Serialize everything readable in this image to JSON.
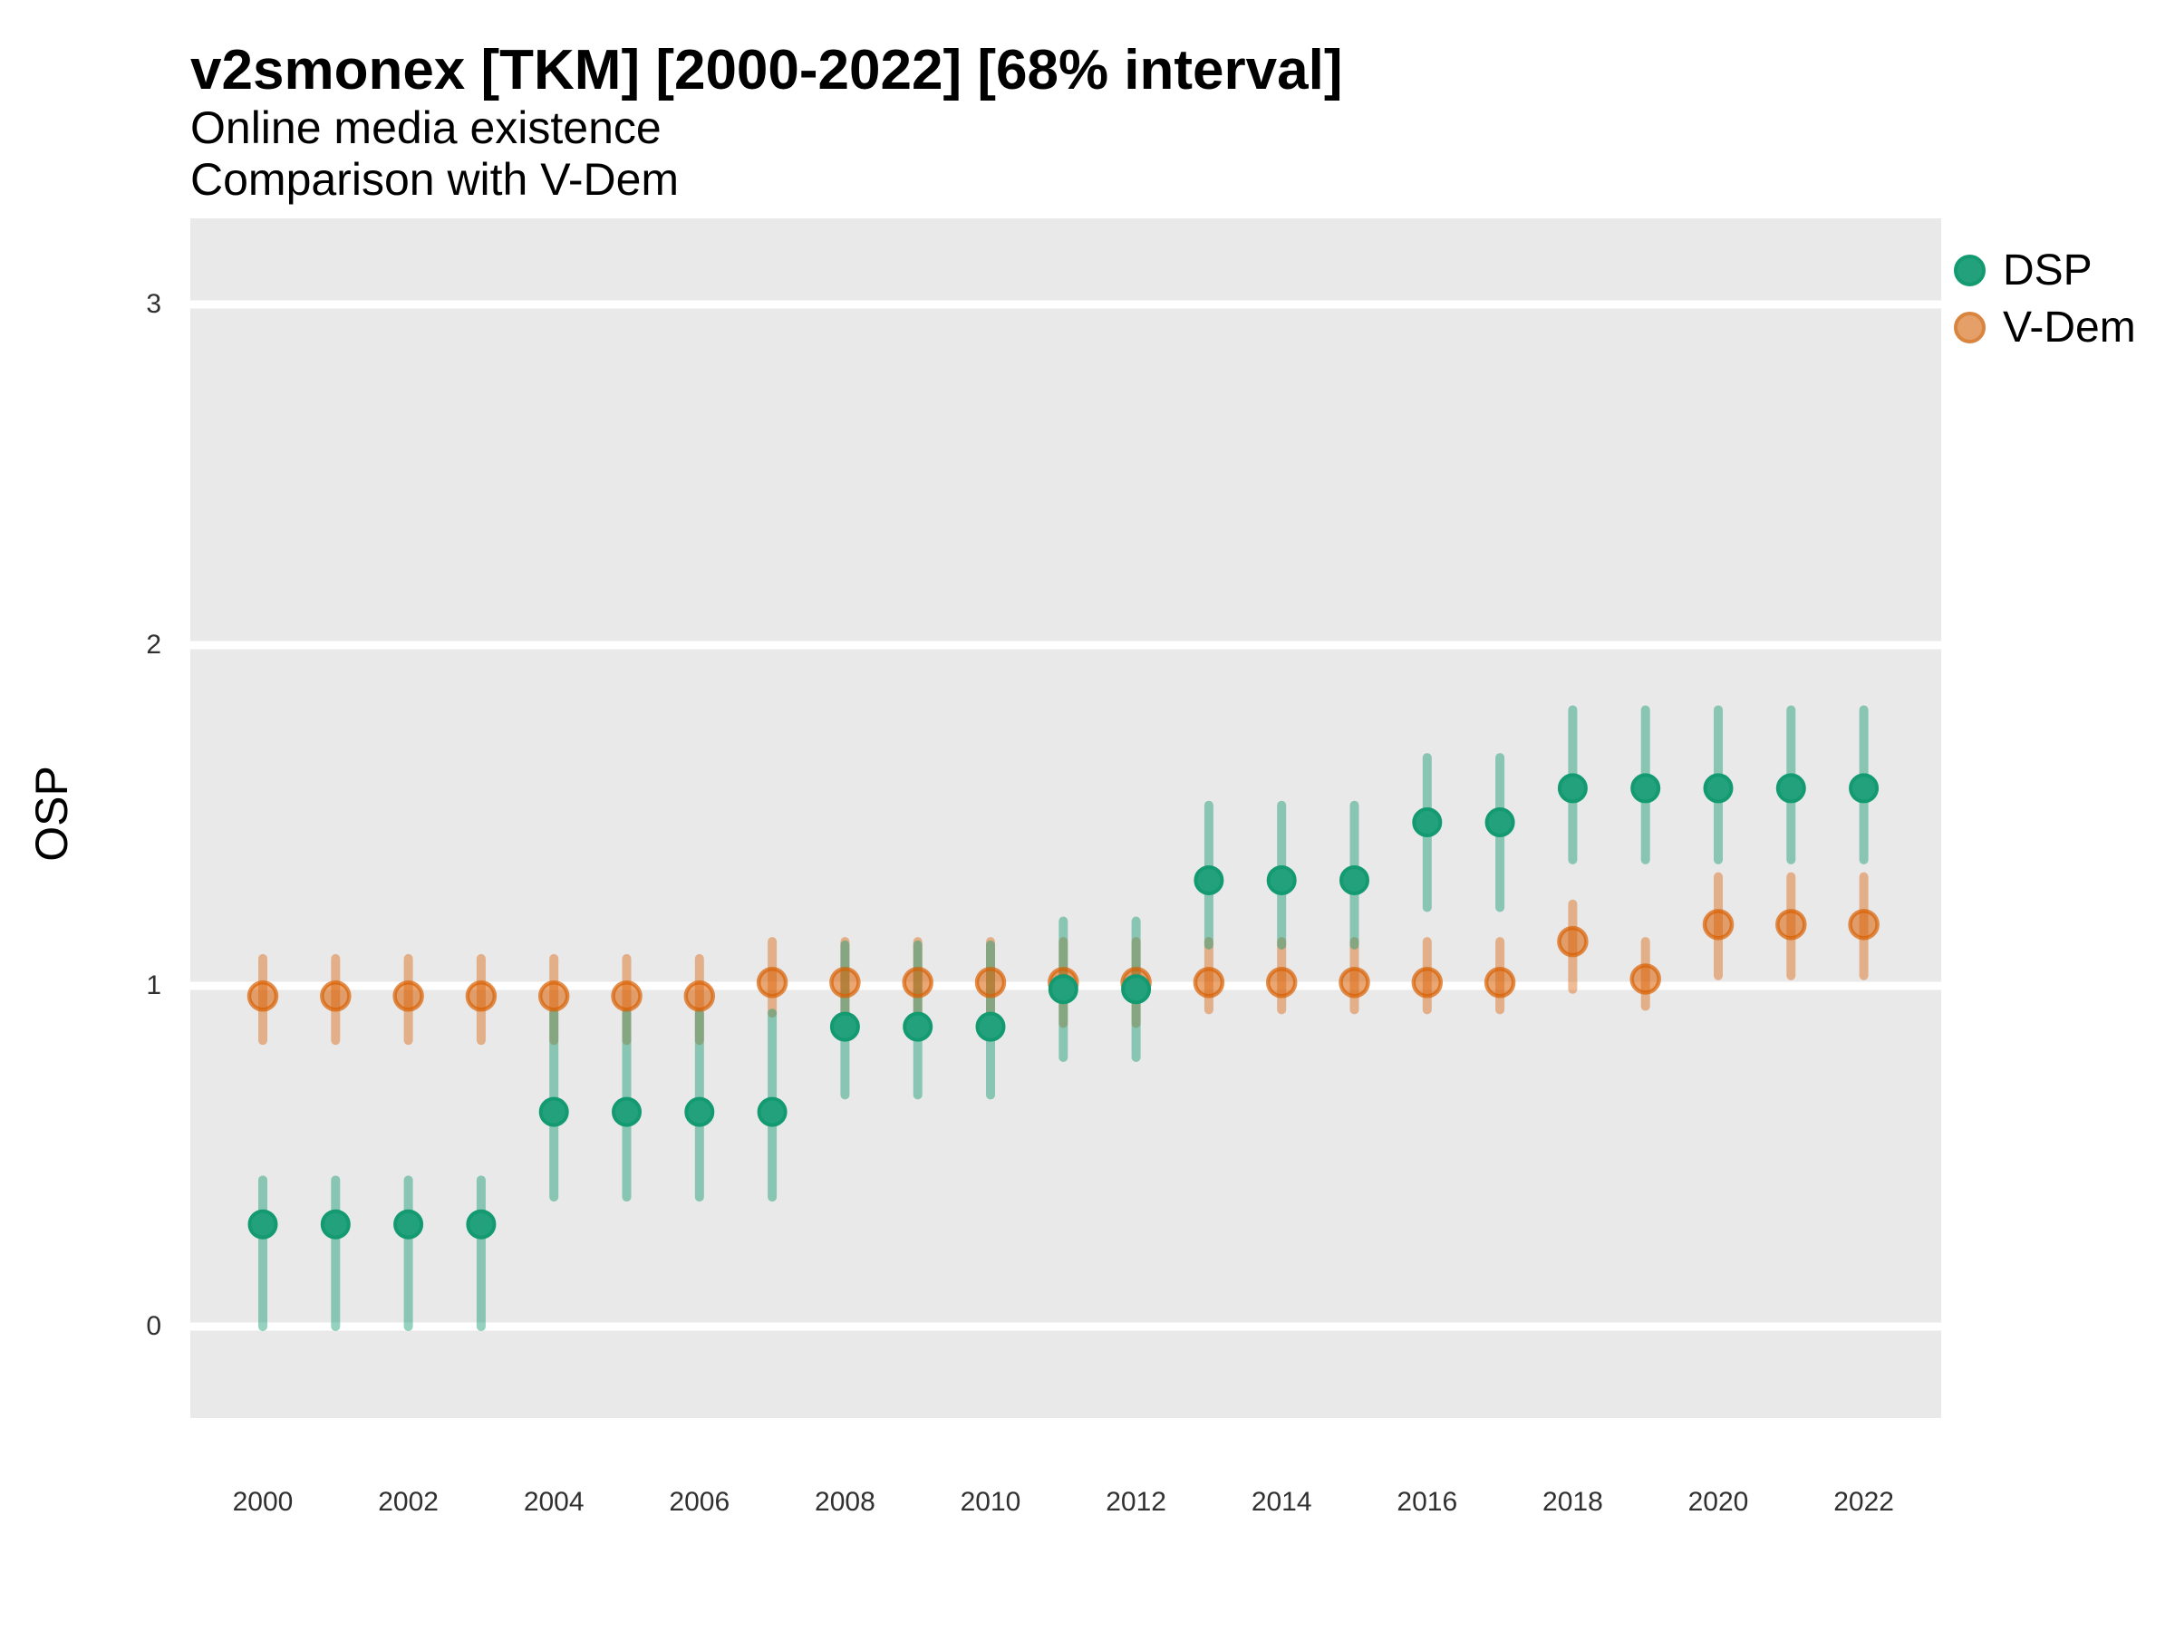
{
  "chart_data": {
    "type": "scatter",
    "subtype": "pointrange",
    "title": "v2smonex [TKM] [2000-2022] [68% interval]",
    "subtitle1": "Online media existence",
    "subtitle2": "Comparison with V-Dem",
    "xlabel": "",
    "ylabel": "OSP",
    "interval": "68%",
    "x_ticks": [
      2000,
      2002,
      2004,
      2006,
      2008,
      2010,
      2012,
      2014,
      2016,
      2018,
      2020,
      2022
    ],
    "y_ticks": [
      0,
      1,
      2,
      3
    ],
    "ylim": [
      -0.27,
      3.25
    ],
    "xlim": [
      1999,
      2023.1
    ],
    "grid": "horizontal white major gridlines on grey panel",
    "legend_position": "right-top",
    "panel_color": "#E9E9E9",
    "gridline_color": "#FFFFFF",
    "x": [
      2000,
      2001,
      2002,
      2003,
      2004,
      2005,
      2006,
      2007,
      2008,
      2009,
      2010,
      2011,
      2012,
      2013,
      2014,
      2015,
      2016,
      2017,
      2018,
      2019,
      2020,
      2021,
      2022
    ],
    "series": [
      {
        "name": "DSP",
        "color": "#1B9E77",
        "est": [
          0.3,
          0.3,
          0.3,
          0.3,
          0.63,
          0.63,
          0.63,
          0.63,
          0.88,
          0.88,
          0.88,
          0.99,
          0.99,
          1.31,
          1.31,
          1.31,
          1.48,
          1.48,
          1.58,
          1.58,
          1.58,
          1.58,
          1.58
        ],
        "lo": [
          0.0,
          0.0,
          0.0,
          0.0,
          0.38,
          0.38,
          0.38,
          0.38,
          0.68,
          0.68,
          0.68,
          0.79,
          0.79,
          1.12,
          1.12,
          1.12,
          1.23,
          1.23,
          1.37,
          1.37,
          1.37,
          1.37,
          1.37
        ],
        "hi": [
          0.43,
          0.43,
          0.43,
          0.43,
          0.92,
          0.92,
          0.92,
          0.92,
          1.12,
          1.12,
          1.12,
          1.19,
          1.19,
          1.53,
          1.53,
          1.53,
          1.67,
          1.67,
          1.81,
          1.81,
          1.81,
          1.81,
          1.81
        ]
      },
      {
        "name": "V-Dem",
        "color": "#D95F02",
        "est": [
          0.97,
          0.97,
          0.97,
          0.97,
          0.97,
          0.97,
          0.97,
          1.01,
          1.01,
          1.01,
          1.01,
          1.01,
          1.01,
          1.01,
          1.01,
          1.01,
          1.01,
          1.01,
          1.13,
          1.02,
          1.18,
          1.18,
          1.18
        ],
        "lo": [
          0.84,
          0.84,
          0.84,
          0.84,
          0.84,
          0.84,
          0.84,
          0.92,
          0.89,
          0.89,
          0.89,
          0.89,
          0.89,
          0.93,
          0.93,
          0.93,
          0.93,
          0.93,
          0.99,
          0.94,
          1.03,
          1.03,
          1.03
        ],
        "hi": [
          1.08,
          1.08,
          1.08,
          1.08,
          1.08,
          1.08,
          1.08,
          1.13,
          1.13,
          1.13,
          1.13,
          1.13,
          1.13,
          1.13,
          1.13,
          1.13,
          1.13,
          1.13,
          1.24,
          1.13,
          1.32,
          1.32,
          1.32
        ]
      }
    ]
  }
}
